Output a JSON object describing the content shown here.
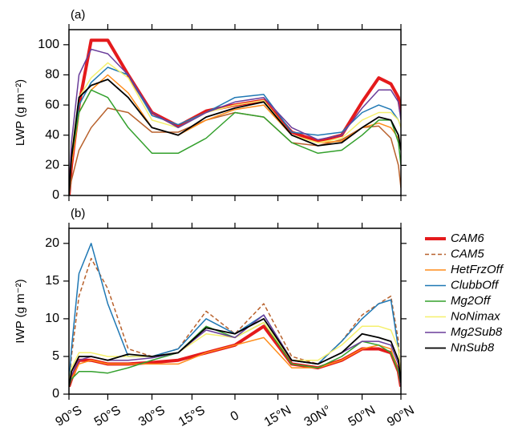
{
  "chart_data": [
    {
      "type": "line",
      "label": "(a)",
      "ylabel": "LWP (g m⁻²)",
      "x": [
        -90,
        -80,
        -70,
        -60,
        -50,
        -40,
        -30,
        -20,
        -10,
        0,
        10,
        20,
        30,
        40,
        50,
        60,
        70,
        80,
        90
      ],
      "xscale": "sine",
      "xlim": [
        -90,
        90
      ],
      "xticks": [
        -90,
        -50,
        -30,
        -15,
        0,
        15,
        30,
        50,
        90
      ],
      "ylim": [
        0,
        110
      ],
      "yticks": [
        0,
        20,
        40,
        60,
        80,
        100
      ],
      "series": [
        {
          "color": "#e41a1c",
          "linewidth": 4,
          "linestyle": "solid",
          "values": [
            0,
            20,
            60,
            103,
            103,
            80,
            55,
            46,
            56,
            60,
            63,
            42,
            36,
            40,
            62,
            78,
            74,
            65,
            55
          ]
        },
        {
          "color": "#b8612c",
          "linewidth": 1.5,
          "linestyle": "solid",
          "values": [
            0,
            10,
            30,
            45,
            58,
            55,
            42,
            42,
            50,
            55,
            52,
            35,
            33,
            37,
            45,
            46,
            38,
            20,
            5
          ]
        },
        {
          "color": "#ff8c1a",
          "linewidth": 1.5,
          "linestyle": "solid",
          "values": [
            0,
            20,
            55,
            70,
            80,
            68,
            45,
            40,
            50,
            57,
            60,
            40,
            35,
            36,
            45,
            48,
            45,
            38,
            30
          ]
        },
        {
          "color": "#1f78b4",
          "linewidth": 1.5,
          "linestyle": "solid",
          "values": [
            0,
            25,
            60,
            75,
            85,
            80,
            53,
            47,
            55,
            65,
            67,
            42,
            40,
            42,
            55,
            60,
            57,
            50,
            45
          ]
        },
        {
          "color": "#33a02c",
          "linewidth": 1.5,
          "linestyle": "solid",
          "values": [
            0,
            25,
            55,
            70,
            65,
            45,
            28,
            28,
            38,
            55,
            52,
            35,
            28,
            30,
            40,
            50,
            50,
            35,
            20
          ]
        },
        {
          "color": "#f5f06e",
          "linewidth": 1.5,
          "linestyle": "solid",
          "values": [
            0,
            28,
            65,
            78,
            88,
            78,
            50,
            45,
            55,
            60,
            63,
            40,
            35,
            38,
            50,
            55,
            55,
            50,
            45
          ]
        },
        {
          "color": "#6a3d9a",
          "linewidth": 1.5,
          "linestyle": "solid",
          "values": [
            0,
            35,
            80,
            97,
            94,
            80,
            55,
            45,
            55,
            62,
            65,
            45,
            37,
            40,
            58,
            70,
            70,
            62,
            50
          ]
        },
        {
          "color": "#000000",
          "linewidth": 1.8,
          "linestyle": "solid",
          "values": [
            0,
            25,
            65,
            73,
            77,
            65,
            45,
            40,
            52,
            58,
            62,
            40,
            33,
            35,
            45,
            52,
            50,
            40,
            30
          ]
        }
      ]
    },
    {
      "type": "line",
      "label": "(b)",
      "ylabel": "IWP (g m⁻²)",
      "x": [
        -90,
        -80,
        -70,
        -60,
        -50,
        -40,
        -30,
        -20,
        -10,
        0,
        10,
        20,
        30,
        40,
        50,
        60,
        70,
        80,
        90
      ],
      "xscale": "sine",
      "xlim": [
        -90,
        90
      ],
      "xticks": [
        {
          "value": -90,
          "label": "90°S"
        },
        {
          "value": -50,
          "label": "50°S"
        },
        {
          "value": -30,
          "label": "30°S"
        },
        {
          "value": -15,
          "label": "15°S"
        },
        0,
        {
          "value": 15,
          "label": "15°N"
        },
        {
          "value": 30,
          "label": "30N°"
        },
        {
          "value": 50,
          "label": "50°N"
        },
        {
          "value": 90,
          "label": "90°N"
        }
      ],
      "ylim": [
        0,
        22
      ],
      "yticks": [
        0,
        5,
        10,
        15,
        20
      ],
      "series": [
        {
          "name": "CAM6",
          "color": "#e41a1c",
          "linewidth": 4,
          "linestyle": "solid",
          "values": [
            1,
            2,
            4.5,
            4.5,
            4,
            4,
            4.2,
            4.5,
            5.5,
            6.5,
            9,
            4,
            3.5,
            4.5,
            6,
            6,
            5.5,
            3,
            1
          ]
        },
        {
          "name": "CAM5",
          "color": "#b8612c",
          "linewidth": 1.5,
          "linestyle": "dashed",
          "values": [
            1,
            5,
            13,
            18,
            14,
            6,
            5,
            6,
            11,
            8,
            12,
            5,
            4,
            7,
            10.5,
            12,
            13,
            7,
            1
          ]
        },
        {
          "name": "HetFrzOff",
          "color": "#ff8c1a",
          "linewidth": 1.5,
          "linestyle": "solid",
          "values": [
            1,
            2,
            4,
            4.5,
            4,
            4,
            4,
            4,
            5.5,
            6.5,
            7.5,
            3.5,
            3.5,
            4.5,
            6,
            6.5,
            6,
            3,
            1
          ]
        },
        {
          "name": "ClubbOff",
          "color": "#1f78b4",
          "linewidth": 1.5,
          "linestyle": "solid",
          "values": [
            1.5,
            6,
            16,
            20,
            12,
            5,
            5,
            6,
            10,
            8,
            10.5,
            4.5,
            4,
            7,
            10,
            12,
            12.5,
            6,
            1.5
          ]
        },
        {
          "name": "Mg2Off",
          "color": "#33a02c",
          "linewidth": 1.5,
          "linestyle": "solid",
          "values": [
            1,
            2,
            3,
            3,
            2.8,
            3.5,
            4.5,
            5.5,
            9,
            7.5,
            9.5,
            4,
            3.5,
            5,
            7,
            6.5,
            5.5,
            3,
            1
          ]
        },
        {
          "name": "NoNimax",
          "color": "#f5f06e",
          "linewidth": 1.5,
          "linestyle": "solid",
          "values": [
            1.5,
            3.5,
            5.5,
            5.5,
            5,
            5,
            5,
            5.5,
            8,
            7.5,
            9.5,
            4.5,
            4.5,
            6.5,
            9,
            9,
            8.5,
            6,
            2
          ]
        },
        {
          "name": "Mg2Sub8",
          "color": "#6a3d9a",
          "linewidth": 1.5,
          "linestyle": "solid",
          "values": [
            1,
            2.5,
            4.5,
            5,
            4.5,
            4.5,
            4.8,
            5.5,
            8.5,
            7.5,
            10.5,
            4.5,
            4,
            5.5,
            7,
            7,
            6.5,
            4,
            1
          ]
        },
        {
          "name": "NnSub8",
          "color": "#000000",
          "linewidth": 1.8,
          "linestyle": "solid",
          "values": [
            1,
            3,
            5,
            5,
            4.5,
            5.3,
            5,
            5.5,
            8.8,
            8,
            10,
            4.5,
            4,
            5.5,
            8,
            7.5,
            7,
            4.5,
            1.5
          ]
        }
      ]
    }
  ]
}
